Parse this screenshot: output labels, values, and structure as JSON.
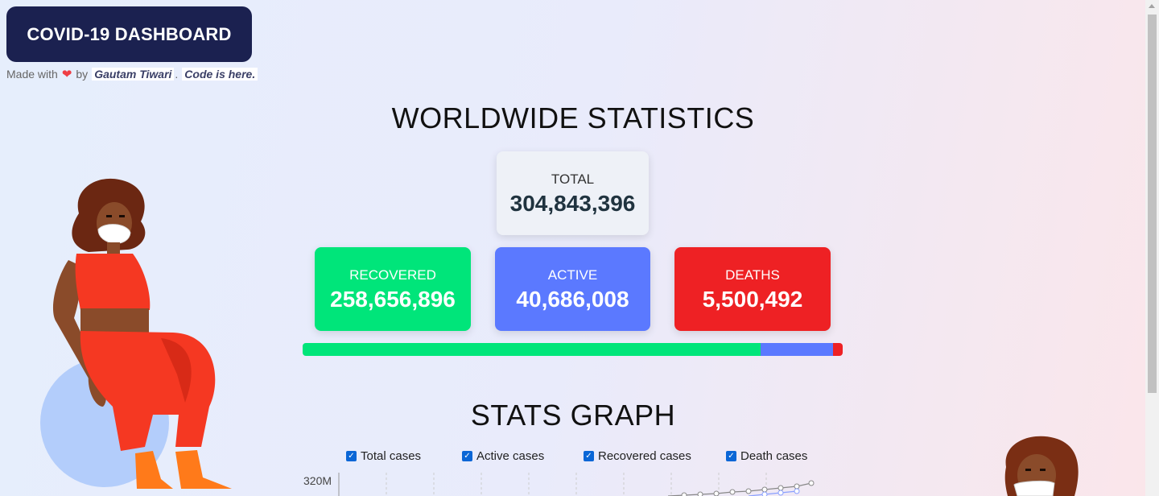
{
  "brand": {
    "title": "COVID-19 DASHBOARD"
  },
  "credits": {
    "prefix": "Made with",
    "by": "by",
    "author": "Gautam Tiwari",
    "separator": ".",
    "code_link": "Code is here."
  },
  "icons": {
    "heart": "heart-icon",
    "check": "check-icon"
  },
  "stats": {
    "title": "WORLDWIDE STATISTICS",
    "total": {
      "label": "TOTAL",
      "value": "304,843,396"
    },
    "recovered": {
      "label": "RECOVERED",
      "value": "258,656,896",
      "color": "#00e57a"
    },
    "active": {
      "label": "ACTIVE",
      "value": "40,686,008",
      "color": "#5b79ff"
    },
    "deaths": {
      "label": "DEATHS",
      "value": "5,500,492",
      "color": "#ee2124"
    }
  },
  "progress": {
    "recovered_fraction": 0.8485,
    "active_fraction": 0.1335,
    "deaths_fraction": 0.018
  },
  "graph": {
    "title": "STATS GRAPH",
    "legend": [
      {
        "label": "Total cases",
        "checked": true
      },
      {
        "label": "Active cases",
        "checked": true
      },
      {
        "label": "Recovered cases",
        "checked": true
      },
      {
        "label": "Death cases",
        "checked": true
      }
    ],
    "y_top_tick": "320M"
  }
}
